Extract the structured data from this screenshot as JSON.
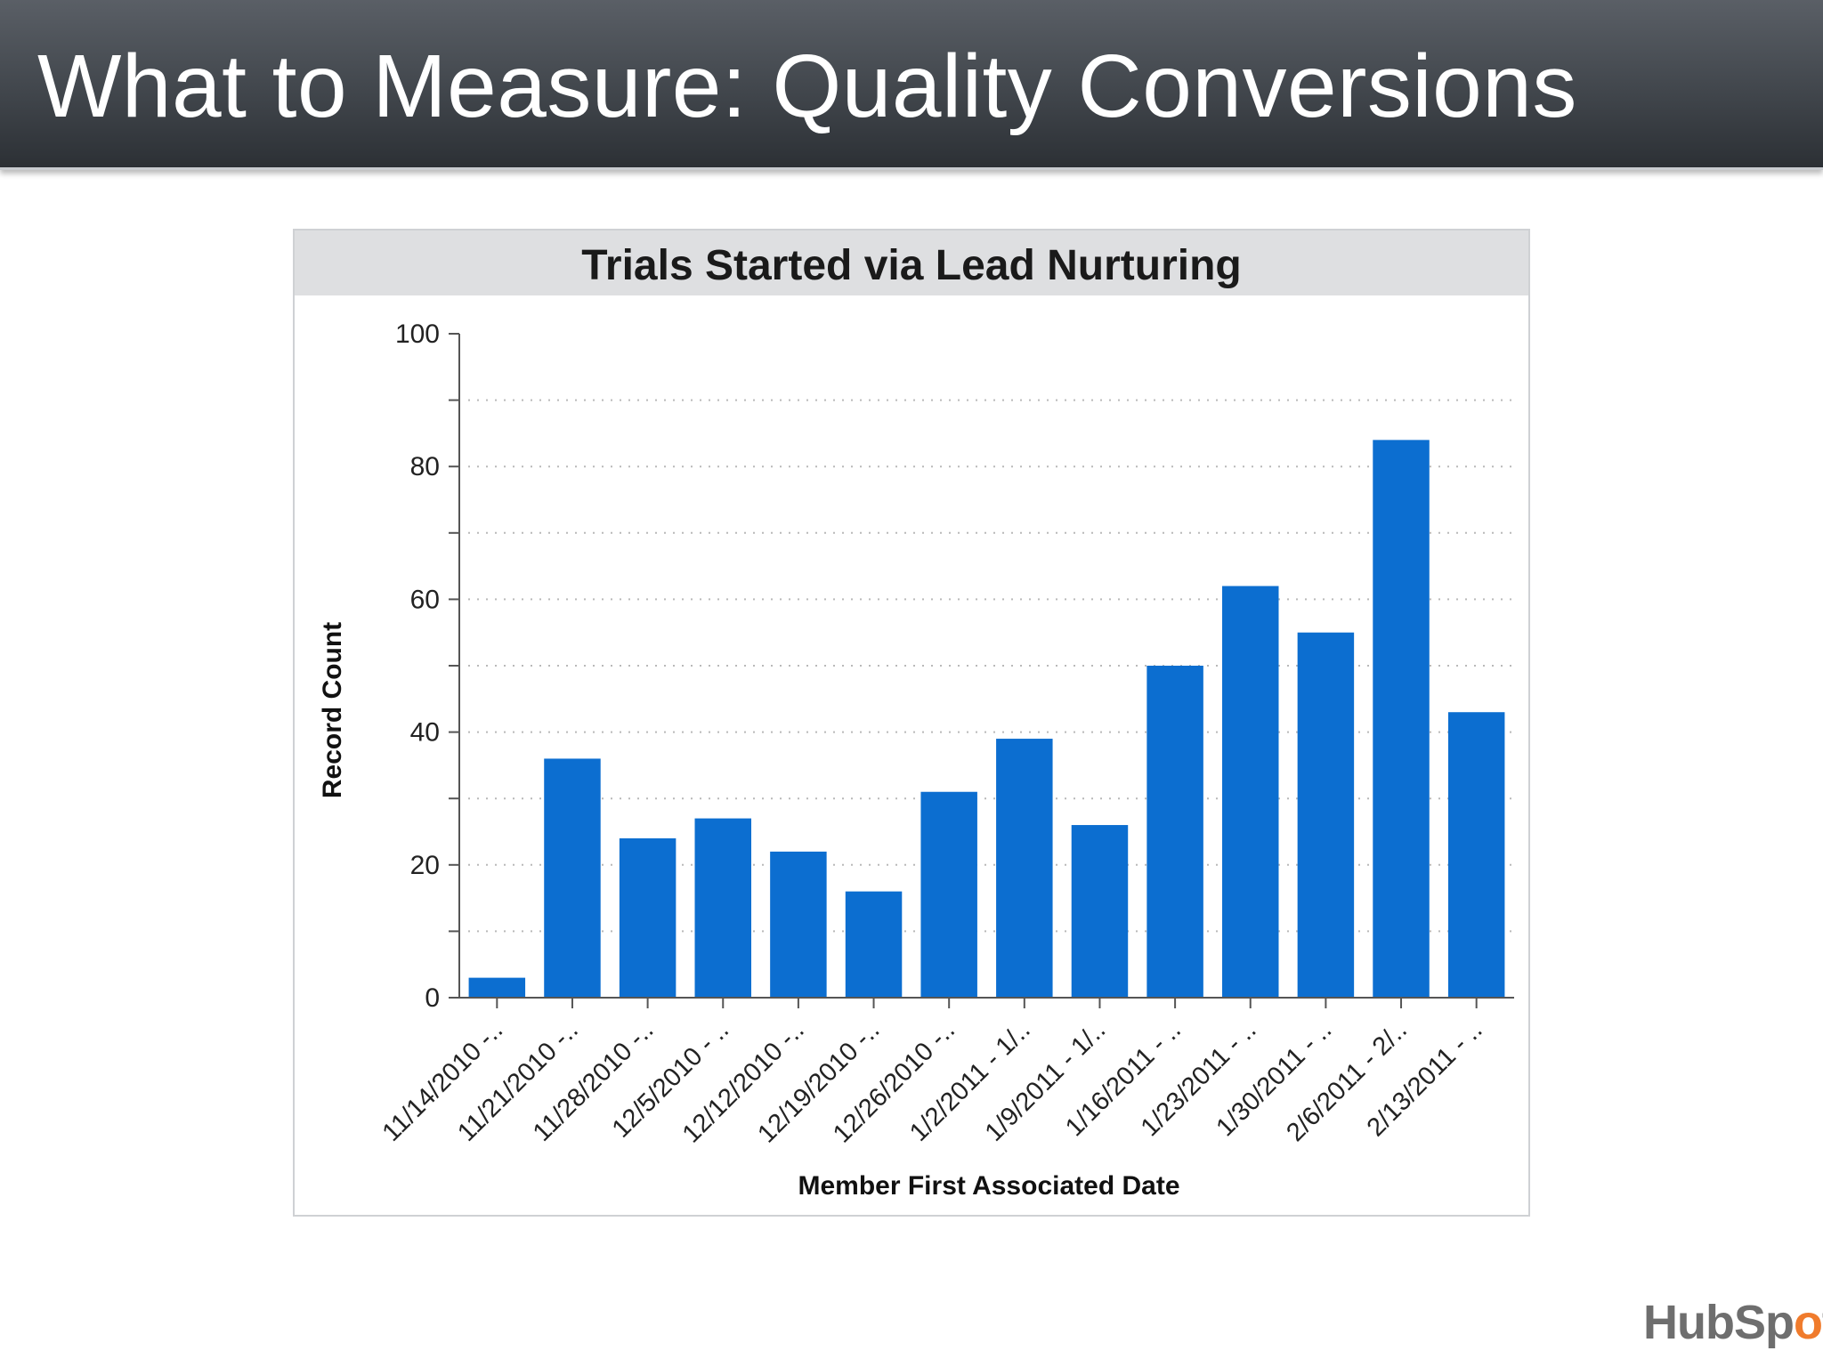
{
  "slide": {
    "title": "What to Measure: Quality Conversions"
  },
  "logo": {
    "text": "HubSpot",
    "accent_color": "#f07b2c"
  },
  "colors": {
    "bar": "#0c6ed0",
    "axis": "#555555",
    "grid": "#b9b9b9"
  },
  "chart_data": {
    "type": "bar",
    "title": "Trials Started via Lead Nurturing",
    "xlabel": "Member First Associated Date",
    "ylabel": "Record Count",
    "ylim": [
      0,
      100
    ],
    "yticks": [
      0,
      20,
      40,
      60,
      80,
      100
    ],
    "grid": true,
    "categories": [
      "11/14/2010 -..",
      "11/21/2010 -..",
      "11/28/2010 -..",
      "12/5/2010 - ..",
      "12/12/2010 -..",
      "12/19/2010 -..",
      "12/26/2010 -..",
      "1/2/2011 - 1/..",
      "1/9/2011 - 1/..",
      "1/16/2011 - ..",
      "1/23/2011 - ..",
      "1/30/2011 - ..",
      "2/6/2011 - 2/..",
      "2/13/2011 - .."
    ],
    "values": [
      3,
      36,
      24,
      27,
      22,
      16,
      31,
      39,
      26,
      50,
      62,
      55,
      84,
      43
    ]
  }
}
